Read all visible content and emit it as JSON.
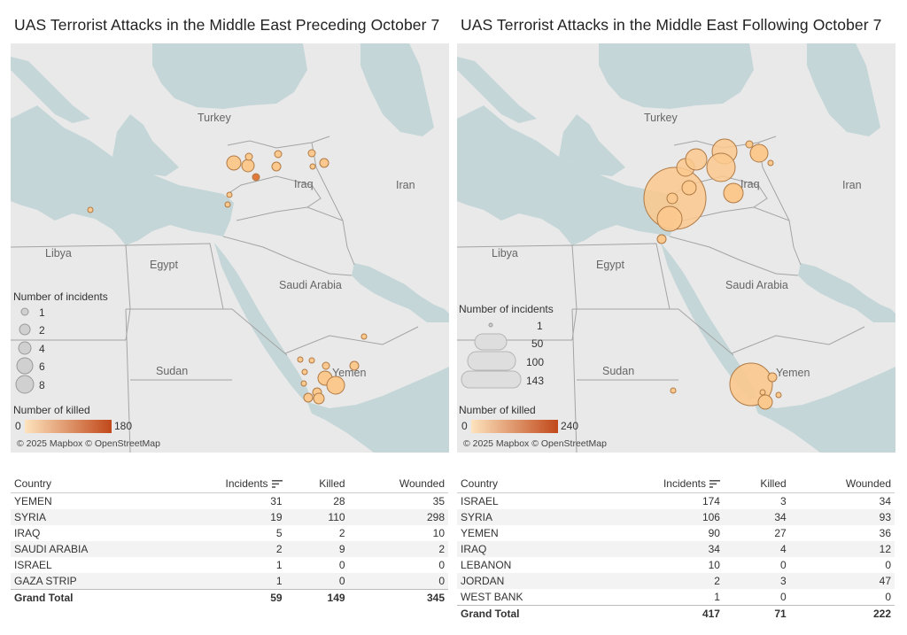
{
  "colors": {
    "sea": "#c4d6d8",
    "land": "#e9e9e9",
    "border": "#9c9c9c",
    "bubble_fill_light": "#fcd9a6",
    "bubble_fill_dark": "#c8511b",
    "bubble_stroke": "#b07a45"
  },
  "left": {
    "title": "UAS Terrorist Attacks in the Middle East Preceding October 7",
    "places": {
      "turkey": "Turkey",
      "iraq": "Iraq",
      "iran": "Iran",
      "libya": "Libya",
      "egypt": "Egypt",
      "saudi": "Saudi Arabia",
      "sudan": "Sudan",
      "yemen": "Yemen"
    },
    "legend": {
      "incidents_title": "Number of incidents",
      "incidents_values": [
        "1",
        "2",
        "4",
        "6",
        "8"
      ],
      "killed_title": "Number of killed",
      "killed_min": "0",
      "killed_max": "180"
    },
    "attribution": "© 2025 Mapbox © OpenStreetMap",
    "table": {
      "headers": [
        "Country",
        "Incidents",
        "Killed",
        "Wounded"
      ],
      "rows": [
        [
          "YEMEN",
          "31",
          "28",
          "35"
        ],
        [
          "SYRIA",
          "19",
          "110",
          "298"
        ],
        [
          "IRAQ",
          "5",
          "2",
          "10"
        ],
        [
          "SAUDI ARABIA",
          "2",
          "9",
          "2"
        ],
        [
          "ISRAEL",
          "1",
          "0",
          "0"
        ],
        [
          "GAZA STRIP",
          "1",
          "0",
          "0"
        ]
      ],
      "total": [
        "Grand Total",
        "59",
        "149",
        "345"
      ]
    }
  },
  "right": {
    "title": "UAS Terrorist Attacks in the Middle East Following October 7",
    "places": {
      "turkey": "Turkey",
      "iraq": "Iraq",
      "iran": "Iran",
      "libya": "Libya",
      "egypt": "Egypt",
      "saudi": "Saudi Arabia",
      "sudan": "Sudan",
      "yemen": "Yemen"
    },
    "legend": {
      "incidents_title": "Number of incidents",
      "incidents_values": [
        "1",
        "50",
        "100",
        "143"
      ],
      "killed_title": "Number of killed",
      "killed_min": "0",
      "killed_max": "240"
    },
    "attribution": "© 2025 Mapbox © OpenStreetMap",
    "table": {
      "headers": [
        "Country",
        "Incidents",
        "Killed",
        "Wounded"
      ],
      "rows": [
        [
          "ISRAEL",
          "174",
          "3",
          "34"
        ],
        [
          "SYRIA",
          "106",
          "34",
          "93"
        ],
        [
          "YEMEN",
          "90",
          "27",
          "36"
        ],
        [
          "IRAQ",
          "34",
          "4",
          "12"
        ],
        [
          "LEBANON",
          "10",
          "0",
          "0"
        ],
        [
          "JORDAN",
          "2",
          "3",
          "47"
        ],
        [
          "WEST BANK",
          "1",
          "0",
          "0"
        ]
      ],
      "total": [
        "Grand Total",
        "417",
        "71",
        "222"
      ]
    }
  }
}
